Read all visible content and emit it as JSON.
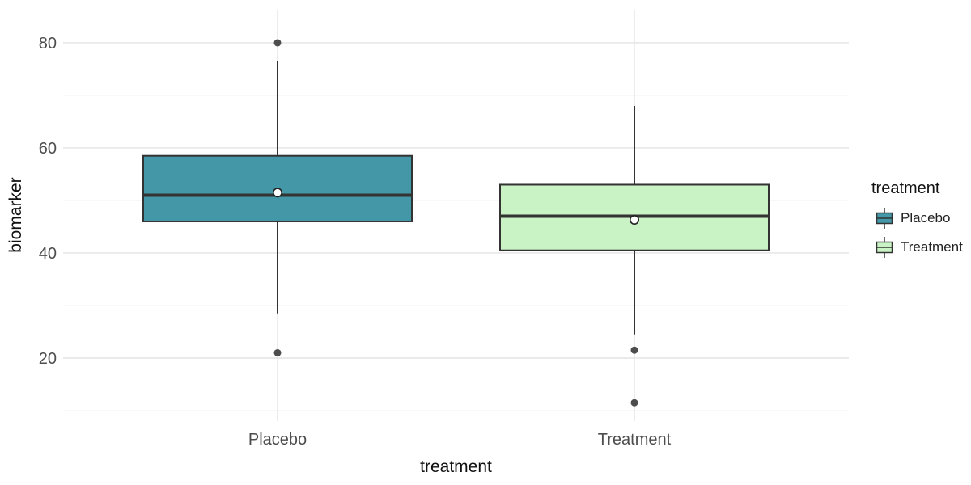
{
  "chart_data": {
    "type": "boxplot",
    "title": "",
    "xlabel": "treatment",
    "ylabel": "biomarker",
    "categories": [
      "Placebo",
      "Treatment"
    ],
    "y_ticks": [
      20,
      40,
      60,
      80
    ],
    "y_minor_ticks": [
      10,
      30,
      50,
      70
    ],
    "ylim": [
      8,
      86.3
    ],
    "grid": "horizontal major and minor gridlines; vertical major gridline at each category; no axis lines or ticks; white background",
    "legend_position": "right",
    "legend": {
      "title": "treatment",
      "entries": [
        {
          "label": "Placebo",
          "color": "#4397a7"
        },
        {
          "label": "Treatment",
          "color": "#c9f2c5"
        }
      ]
    },
    "series": [
      {
        "name": "Placebo",
        "fill": "#4397a7",
        "stats": {
          "whisker_low": 28.5,
          "q1": 46,
          "median": 51,
          "q3": 58.5,
          "whisker_high": 76.5,
          "mean": 51.5,
          "outliers": [
            80,
            21
          ]
        }
      },
      {
        "name": "Treatment",
        "fill": "#c9f2c5",
        "stats": {
          "whisker_low": 24.5,
          "q1": 40.5,
          "median": 47,
          "q3": 53,
          "whisker_high": 68,
          "mean": 46.3,
          "outliers": [
            21.5,
            11.5
          ]
        }
      }
    ],
    "colors": {
      "box_border": "#333333",
      "median_line": "#333333",
      "whisker": "#333333",
      "outlier": "#4d4d4d",
      "mean_fill": "#ffffff",
      "mean_stroke": "#222222",
      "grid_major": "#e4e4e4",
      "grid_minor": "#f1f1f1",
      "tick_label": "#4d4d4d",
      "axis_title": "#111111"
    }
  }
}
